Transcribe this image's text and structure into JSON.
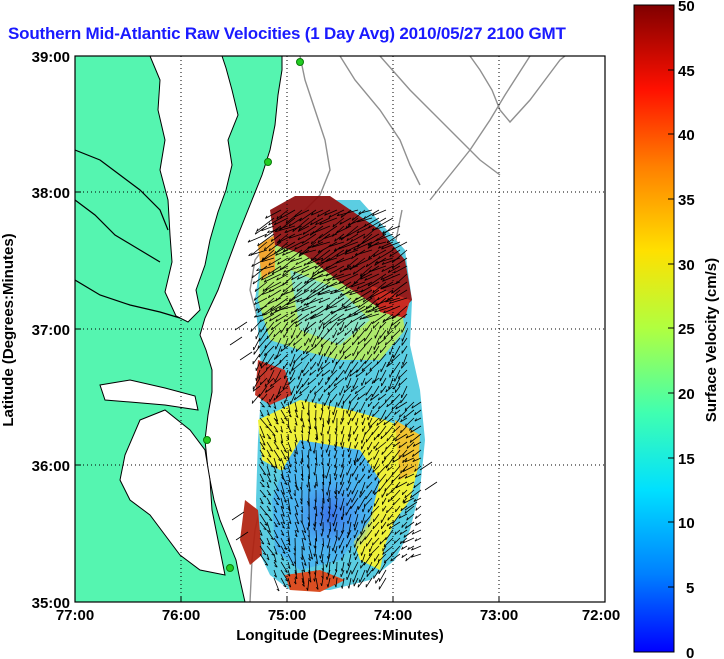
{
  "title": "Southern Mid-Atlantic Raw Velocities (1 Day Avg) 2010/05/27 2100 GMT",
  "map": {
    "xlabel": "Longitude (Degrees:Minutes)",
    "ylabel": "Latitude (Degrees:Minutes)",
    "x_ticks": [
      "77:00",
      "76:00",
      "75:00",
      "74:00",
      "73:00",
      "72:00"
    ],
    "y_ticks": [
      "39:00",
      "38:00",
      "37:00",
      "36:00",
      "35:00"
    ],
    "colors": {
      "land": "#55f5b0",
      "coast": "#000000",
      "bathymetry": "#909090",
      "station": "#22cc22"
    }
  },
  "colorbar": {
    "label": "Surface Velocity (cm/s)",
    "ticks": [
      "50",
      "45",
      "40",
      "35",
      "30",
      "25",
      "20",
      "15",
      "10",
      "5",
      "0"
    ],
    "units": "cm/s",
    "range": [
      0,
      50
    ]
  }
}
